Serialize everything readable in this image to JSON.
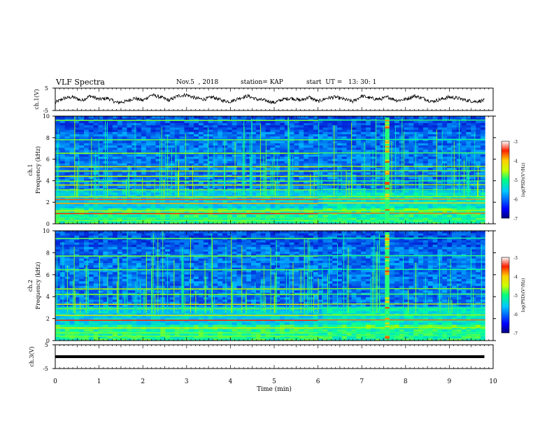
{
  "header": {
    "title": "VLF Spectra",
    "date": "Nov.5  , 2018",
    "station": "station= KAP",
    "start": "start  UT =   13: 30: 1"
  },
  "chart_data": [
    {
      "type": "line",
      "panel": "waveform-ch1",
      "ylabel": "ch.1(V)",
      "ylim": [
        -5,
        5
      ],
      "yticks": [
        5,
        -5
      ],
      "xlim": [
        0,
        10
      ],
      "series": [
        {
          "values_note_omitted": true,
          "x": [
            0,
            0.2,
            0.4,
            0.6,
            0.8,
            1.0,
            1.2,
            1.4,
            1.6,
            1.8,
            2.0,
            2.2,
            2.4,
            2.6,
            2.8,
            3.0,
            3.2,
            3.4,
            3.6,
            3.8,
            4.0,
            4.2,
            4.4,
            4.6,
            4.8,
            5.0,
            5.2,
            5.4,
            5.6,
            5.8,
            6.0,
            6.2,
            6.4,
            6.6,
            6.8,
            7.0,
            7.2,
            7.4,
            7.6,
            7.8,
            8.0,
            8.2,
            8.4,
            8.6,
            8.8,
            9.0,
            9.2,
            9.4,
            9.6,
            9.8
          ],
          "y": [
            -1.5,
            0.5,
            1.0,
            -0.5,
            1.5,
            0,
            0.5,
            -1.5,
            -1.0,
            0.5,
            -0.5,
            2.0,
            1.0,
            -0.5,
            1.5,
            2.0,
            0.5,
            0,
            1.0,
            -0.5,
            -1.0,
            0.5,
            1.5,
            0,
            -0.5,
            -1.5,
            0,
            0.5,
            -0.5,
            1.0,
            -1.0,
            0.5,
            1.0,
            0,
            -1.0,
            1.5,
            0.5,
            0,
            1.0,
            -0.5,
            0,
            1.5,
            0.5,
            -1.0,
            0,
            1.0,
            0.5,
            -0.5,
            -1.0,
            -0.5
          ]
        }
      ]
    },
    {
      "type": "heatmap",
      "panel": "spectrogram-ch1",
      "ylabel": "ch.1 Frequency (kHz)",
      "yticks": [
        0,
        2,
        4,
        6,
        8,
        10
      ],
      "ylim": [
        0,
        10
      ],
      "xlim": [
        0,
        10
      ],
      "colorbar": {
        "label": "log(PSD)(V²/Hz)",
        "range": [
          -7,
          -3
        ],
        "ticks": [
          -3,
          -4,
          -5,
          -6,
          -7
        ]
      }
    },
    {
      "type": "heatmap",
      "panel": "spectrogram-ch2",
      "ylabel": "ch.2 Frequency (kHz)",
      "yticks": [
        0,
        2,
        4,
        6,
        8,
        10
      ],
      "ylim": [
        0,
        10
      ],
      "xlim": [
        0,
        10
      ],
      "colorbar": {
        "label": "log(PSD)(V²/Hz)",
        "range": [
          -7,
          -3
        ],
        "ticks": [
          -3,
          -4,
          -5,
          -6,
          -7
        ]
      }
    },
    {
      "type": "line",
      "panel": "waveform-ch3",
      "ylabel": "ch.3(V)",
      "ylim": [
        -5,
        5
      ],
      "yticks": [
        5,
        -5
      ],
      "xlim": [
        0,
        10
      ],
      "series": [
        {
          "x": [
            0,
            9.8
          ],
          "y": [
            0,
            0
          ]
        }
      ]
    }
  ],
  "xaxis": {
    "label": "Time  (min)",
    "ticks": [
      0,
      1,
      2,
      3,
      4,
      5,
      6,
      7,
      8,
      9,
      10
    ]
  },
  "colorbar_labels": {
    "t1": "-3",
    "t2": "-4",
    "t3": "-5",
    "t4": "-6",
    "t5": "-7",
    "title": "log(PSD)(V²/Hz)"
  }
}
